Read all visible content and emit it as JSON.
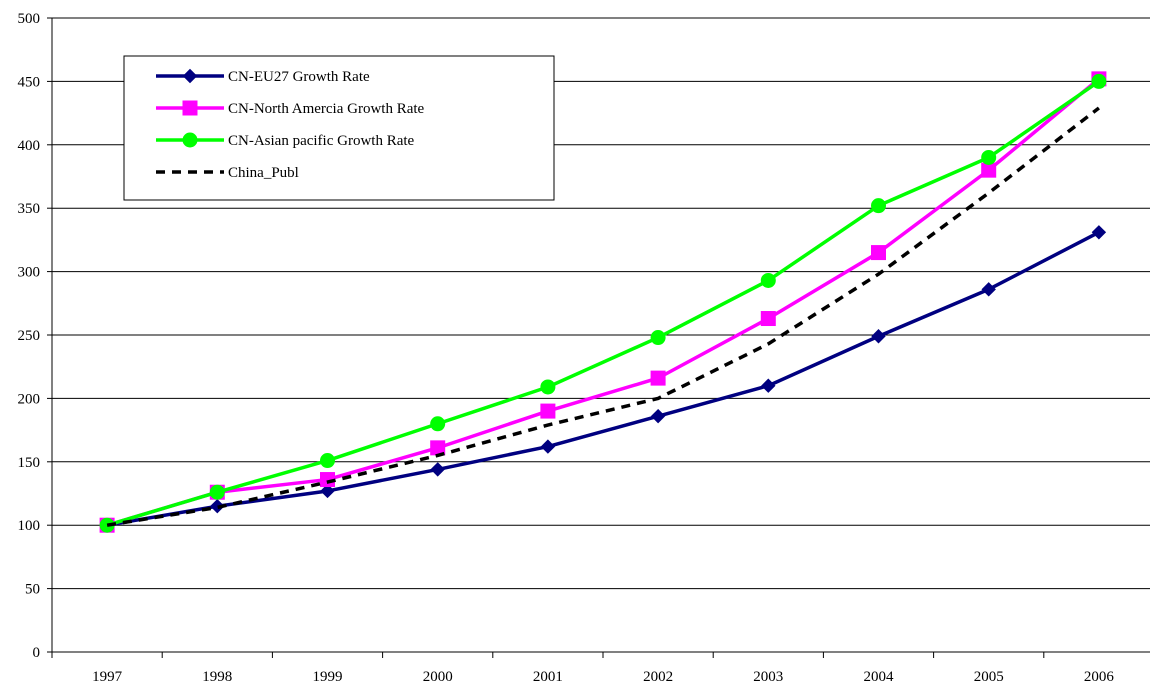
{
  "chart_data": {
    "type": "line",
    "title": "",
    "xlabel": "",
    "ylabel": "",
    "categories": [
      "1997",
      "1998",
      "1999",
      "2000",
      "2001",
      "2002",
      "2003",
      "2004",
      "2005",
      "2006"
    ],
    "ylim": [
      0,
      500
    ],
    "yticks": [
      0,
      50,
      100,
      150,
      200,
      250,
      300,
      350,
      400,
      450,
      500
    ],
    "grid": {
      "horizontal": true,
      "vertical": false
    },
    "legend_position": "top-left (inside plot)",
    "series": [
      {
        "name": "CN-EU27 Growth Rate",
        "color": "#000080",
        "marker": "diamond",
        "line_style": "solid",
        "values": [
          100,
          115,
          127,
          144,
          162,
          186,
          210,
          249,
          286,
          331
        ]
      },
      {
        "name": "CN-North Amercia Growth Rate",
        "color": "#FF00FF",
        "marker": "square",
        "line_style": "solid",
        "values": [
          100,
          126,
          136,
          161,
          190,
          216,
          263,
          315,
          380,
          452
        ]
      },
      {
        "name": "CN-Asian pacific Growth Rate",
        "color": "#00FF00",
        "marker": "circle",
        "line_style": "solid",
        "values": [
          100,
          126,
          151,
          180,
          209,
          248,
          293,
          352,
          390,
          450
        ]
      },
      {
        "name": "China_Publ",
        "color": "#000000",
        "marker": "none",
        "line_style": "dashed",
        "values": [
          100,
          114,
          134,
          155,
          179,
          200,
          243,
          298,
          362,
          429
        ]
      }
    ]
  }
}
